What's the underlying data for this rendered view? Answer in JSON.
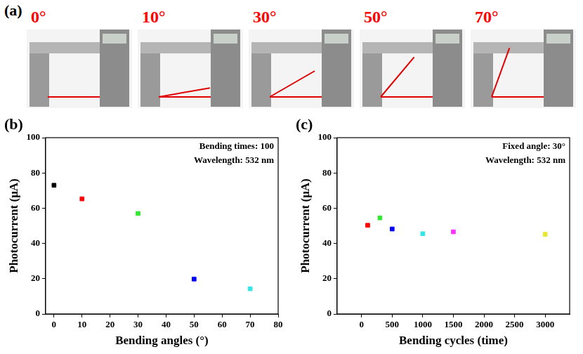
{
  "photos": {
    "label": "(a)",
    "captions": [
      "0°",
      "10°",
      "30°",
      "50°",
      "70°"
    ]
  },
  "chart_data": [
    {
      "type": "scatter",
      "label": "(b)",
      "annotations": [
        "Bending times: 100",
        "Wavelength: 532 nm"
      ],
      "x_label": "Bending angles (°)",
      "y_label": "Photocurrent (μA)",
      "x": [
        0,
        10,
        30,
        50,
        70
      ],
      "values": [
        73,
        65.3,
        57,
        19.8,
        14.3
      ],
      "colors": [
        "#000000",
        "#ff0000",
        "#33e633",
        "#0000ff",
        "#33e6e6"
      ],
      "marker": "square",
      "xlim": [
        -3,
        80
      ],
      "xticks": [
        0,
        10,
        20,
        30,
        40,
        50,
        60,
        70,
        80
      ],
      "ylim": [
        0,
        100
      ],
      "yticks": [
        0,
        20,
        40,
        60,
        80,
        100
      ],
      "grid": false
    },
    {
      "type": "scatter",
      "label": "(c)",
      "annotations": [
        "Fixed angle: 30°",
        "Wavelength: 532 nm"
      ],
      "x_label": "Bending cycles (time)",
      "y_label": "Photocurrent (μA)",
      "x": [
        100,
        300,
        500,
        1000,
        1500,
        3000
      ],
      "values": [
        50.3,
        54.5,
        48.2,
        45.5,
        46.6,
        45.2
      ],
      "colors": [
        "#ff0000",
        "#33e633",
        "#0000ff",
        "#33e6e6",
        "#ff33ff",
        "#e6e633"
      ],
      "marker": "square",
      "xlim": [
        -400,
        3400
      ],
      "xticks": [
        0,
        500,
        1000,
        1500,
        2000,
        2500,
        3000
      ],
      "ylim": [
        0,
        100
      ],
      "yticks": [
        0,
        20,
        40,
        60,
        80,
        100
      ],
      "grid": false
    }
  ]
}
